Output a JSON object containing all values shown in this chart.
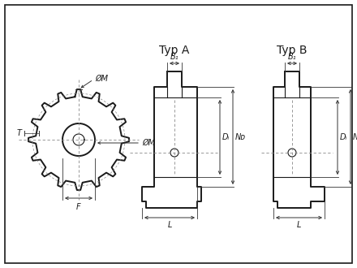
{
  "bg_color": "#ffffff",
  "line_color": "#1a1a1a",
  "dim_color": "#333333",
  "dash_color": "#888888",
  "title_typ_a": "Typ A",
  "title_typ_b": "Typ B",
  "label_OM_top": "ØM",
  "label_OM_right": "ØM",
  "label_T": "T",
  "label_F": "F",
  "label_B1": "B₁",
  "label_DL": "Dₗ",
  "label_ND": "Nᴅ",
  "label_L": "L",
  "font_size_title": 10,
  "font_size_label": 7
}
